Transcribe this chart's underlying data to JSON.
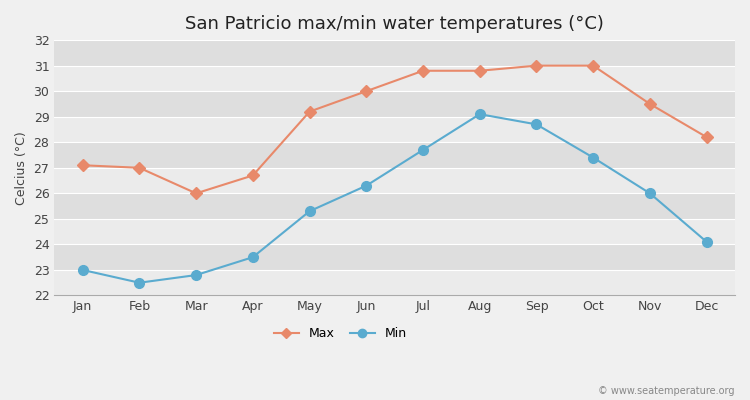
{
  "title": "San Patricio max/min water temperatures (°C)",
  "ylabel": "Celcius (°C)",
  "months": [
    "Jan",
    "Feb",
    "Mar",
    "Apr",
    "May",
    "Jun",
    "Jul",
    "Aug",
    "Sep",
    "Oct",
    "Nov",
    "Dec"
  ],
  "max_values": [
    27.1,
    27.0,
    26.0,
    26.7,
    29.2,
    30.0,
    30.8,
    30.8,
    31.0,
    31.0,
    29.5,
    28.2
  ],
  "min_values": [
    23.0,
    22.5,
    22.8,
    23.5,
    25.3,
    26.3,
    27.7,
    29.1,
    28.7,
    27.4,
    26.0,
    24.1
  ],
  "max_color": "#e8896a",
  "min_color": "#5aabcf",
  "bg_color": "#f0f0f0",
  "plot_bg_color": "#e4e4e4",
  "band_color_light": "#ebebeb",
  "band_color_dark": "#dedede",
  "grid_color": "#ffffff",
  "ylim": [
    22,
    32
  ],
  "yticks": [
    22,
    23,
    24,
    25,
    26,
    27,
    28,
    29,
    30,
    31,
    32
  ],
  "legend_labels": [
    "Max",
    "Min"
  ],
  "watermark": "© www.seatemperature.org",
  "title_fontsize": 13,
  "label_fontsize": 9,
  "tick_fontsize": 9
}
